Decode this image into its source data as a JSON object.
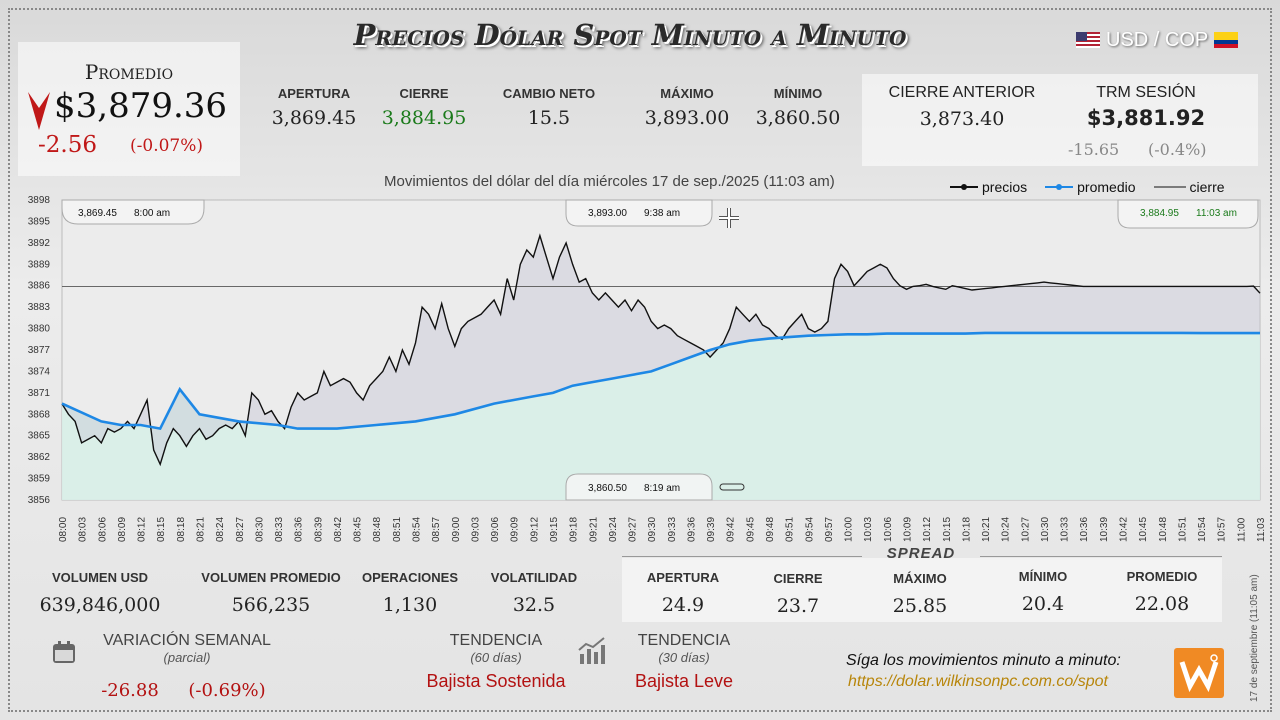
{
  "header": {
    "title": "Precios Dólar Spot Minuto a Minuto",
    "pair": "USD / COP"
  },
  "promedio": {
    "label": "Promedio",
    "value": "$3,879.36",
    "change": "-2.56",
    "change_pct": "(-0.07%)"
  },
  "top_stats": [
    {
      "label": "APERTURA",
      "value": "3,869.45"
    },
    {
      "label": "CIERRE",
      "value": "3,884.95"
    },
    {
      "label": "CAMBIO NETO",
      "value": "15.5"
    },
    {
      "label": "MÁXIMO",
      "value": "3,893.00"
    },
    {
      "label": "MÍNIMO",
      "value": "3,860.50"
    }
  ],
  "cierre_anterior": {
    "label": "CIERRE ANTERIOR",
    "value": "3,873.40"
  },
  "trm": {
    "label": "TRM SESIÓN",
    "value": "$3,881.92",
    "change": "-15.65",
    "change_pct": "(-0.4%)"
  },
  "chart_title": "Movimientos del dólar del día miércoles 17 de sep./2025 (11:03 am)",
  "legend": [
    "precios",
    "promedio",
    "cierre"
  ],
  "callouts": {
    "open": {
      "value": "3,869.45",
      "time": "8:00 am"
    },
    "max": {
      "value": "3,893.00",
      "time": "9:38 am"
    },
    "close": {
      "value": "3,884.95",
      "time": "11:03 am"
    },
    "min": {
      "value": "3,860.50",
      "time": "8:19 am"
    }
  },
  "bottom_stats": [
    {
      "label": "VOLUMEN USD",
      "value": "639,846,000"
    },
    {
      "label": "VOLUMEN PROMEDIO",
      "value": "566,235"
    },
    {
      "label": "OPERACIONES",
      "value": "1,130"
    },
    {
      "label": "VOLATILIDAD",
      "value": "32.5"
    }
  ],
  "spread": {
    "title": "SPREAD",
    "items": [
      {
        "label": "APERTURA",
        "value": "24.9"
      },
      {
        "label": "CIERRE",
        "value": "23.7"
      },
      {
        "label": "MÁXIMO",
        "value": "25.85"
      },
      {
        "label": "MÍNIMO",
        "value": "20.4"
      },
      {
        "label": "PROMEDIO",
        "value": "22.08"
      }
    ]
  },
  "variacion": {
    "label": "VARIACIÓN SEMANAL",
    "sub": "(parcial)",
    "value": "-26.88",
    "pct": "(-0.69%)"
  },
  "tendencia_60": {
    "label": "TENDENCIA",
    "sub": "(60 días)",
    "value": "Bajista Sostenida"
  },
  "tendencia_30": {
    "label": "TENDENCIA",
    "sub": "(30 días)",
    "value": "Bajista Leve"
  },
  "follow": {
    "text": "Síga los movimientos minuto a minuto:",
    "url": "https://dolar.wilkinsonpc.com.co/spot"
  },
  "timestamp": "17 de septiembre (11:05 am)",
  "colors": {
    "price": "#111111",
    "average": "#1e88e5",
    "fill": "#d8efe8",
    "negative": "#c01818",
    "positive": "#1a7a1a"
  },
  "chart_data": {
    "type": "line",
    "title": "Movimientos del dólar del día miércoles 17 de sep./2025 (11:03 am)",
    "ylim": [
      3856,
      3898
    ],
    "yticks": [
      3856,
      3859,
      3862,
      3865,
      3868,
      3871,
      3874,
      3877,
      3880,
      3883,
      3886,
      3889,
      3892,
      3895,
      3898
    ],
    "xticks": [
      "08:00",
      "08:03",
      "08:06",
      "08:09",
      "08:12",
      "08:15",
      "08:18",
      "08:21",
      "08:24",
      "08:27",
      "08:30",
      "08:33",
      "08:36",
      "08:39",
      "08:42",
      "08:45",
      "08:48",
      "08:51",
      "08:54",
      "08:57",
      "09:00",
      "09:03",
      "09:06",
      "09:09",
      "09:12",
      "09:15",
      "09:18",
      "09:21",
      "09:24",
      "09:27",
      "09:30",
      "09:33",
      "09:36",
      "09:39",
      "09:42",
      "09:45",
      "09:48",
      "09:51",
      "09:54",
      "09:57",
      "10:00",
      "10:03",
      "10:06",
      "10:09",
      "10:12",
      "10:15",
      "10:18",
      "10:21",
      "10:24",
      "10:27",
      "10:30",
      "10:33",
      "10:36",
      "10:39",
      "10:42",
      "10:45",
      "10:48",
      "10:51",
      "10:54",
      "10:57",
      "11:00",
      "11:03"
    ],
    "close_ref": 3885.9,
    "series": [
      {
        "name": "precios",
        "x_minutes": [
          0,
          1,
          2,
          3,
          4,
          5,
          6,
          7,
          8,
          9,
          10,
          11,
          12,
          13,
          14,
          15,
          16,
          17,
          18,
          19,
          20,
          21,
          22,
          23,
          24,
          25,
          26,
          27,
          28,
          29,
          30,
          31,
          32,
          33,
          34,
          35,
          36,
          37,
          38,
          39,
          40,
          41,
          42,
          43,
          44,
          45,
          46,
          47,
          48,
          49,
          50,
          51,
          52,
          53,
          54,
          55,
          56,
          57,
          58,
          59,
          60,
          61,
          62,
          63,
          64,
          65,
          66,
          67,
          68,
          69,
          70,
          71,
          72,
          73,
          74,
          75,
          76,
          77,
          78,
          79,
          80,
          81,
          82,
          83,
          84,
          85,
          86,
          87,
          88,
          89,
          90,
          91,
          92,
          93,
          94,
          95,
          96,
          97,
          98,
          99,
          100,
          101,
          102,
          103,
          104,
          105,
          106,
          107,
          108,
          109,
          110,
          111,
          112,
          113,
          114,
          115,
          116,
          117,
          118,
          119,
          120,
          121,
          122,
          123,
          124,
          125,
          126,
          127,
          128,
          129,
          130,
          131,
          132,
          133,
          134,
          135,
          136,
          137,
          138,
          139,
          140,
          141,
          142,
          143,
          144,
          145,
          146,
          147,
          148,
          149,
          150,
          151,
          152,
          153,
          154,
          155,
          156,
          157,
          158,
          159,
          160,
          161,
          162,
          163,
          164,
          165,
          166,
          167,
          168,
          169,
          170,
          171,
          172,
          173,
          174,
          175,
          176,
          177,
          178,
          179,
          180,
          181,
          182,
          183
        ],
        "values": [
          3869.45,
          3868,
          3867,
          3864,
          3864.5,
          3865,
          3864,
          3866,
          3865.5,
          3866,
          3867,
          3866,
          3868,
          3870,
          3863,
          3861,
          3864,
          3866,
          3865,
          3863.5,
          3865,
          3866,
          3864.5,
          3865,
          3866,
          3866.5,
          3866,
          3867,
          3865,
          3871,
          3870,
          3868,
          3868.5,
          3867,
          3866,
          3869,
          3871,
          3870,
          3870.5,
          3871,
          3874,
          3872,
          3872.5,
          3873,
          3872.5,
          3871,
          3870,
          3872,
          3873,
          3874,
          3876,
          3874,
          3877,
          3875,
          3878,
          3883,
          3882,
          3880,
          3883.5,
          3880,
          3877.5,
          3880,
          3881,
          3881.5,
          3882,
          3883,
          3884,
          3882,
          3887,
          3884,
          3889,
          3891,
          3890,
          3893,
          3890,
          3887,
          3890,
          3892,
          3889,
          3886.5,
          3887,
          3885,
          3884,
          3885,
          3884,
          3883,
          3884,
          3882.5,
          3884,
          3883,
          3881,
          3880,
          3880.5,
          3880,
          3879,
          3878.5,
          3878,
          3877.5,
          3877,
          3876,
          3877,
          3878,
          3880,
          3883,
          3882,
          3881,
          3882,
          3880.5,
          3880,
          3879,
          3878.5,
          3880,
          3881,
          3882,
          3880,
          3879.5,
          3880,
          3881,
          3887,
          3889,
          3888,
          3886,
          3887,
          3888,
          3888.5,
          3889,
          3888.5,
          3887,
          3886,
          3885.5,
          3885.9,
          3886,
          3886.2,
          3885.9,
          3885.7,
          3885.5,
          3886,
          3885.8,
          3885.6,
          3885.4,
          3885.5,
          3885.6,
          3885.7,
          3885.8,
          3885.9,
          3886,
          3886.1,
          3886.2,
          3886.3,
          3886.4,
          3886.5,
          3886.4,
          3886.3,
          3886.2,
          3886.1,
          3886,
          3885.9,
          3885.9,
          3885.9,
          3885.9,
          3885.9,
          3885.9,
          3885.9,
          3885.9,
          3885.9,
          3885.9,
          3885.9,
          3885.9,
          3885.9,
          3885.9,
          3885.9,
          3885.9,
          3885.9,
          3885.9,
          3885.9,
          3885.9,
          3885.9,
          3885.9,
          3885.9,
          3885.9,
          3885.9,
          3885.9,
          3885.95,
          3884.95
        ]
      },
      {
        "name": "promedio",
        "x_minutes": [
          0,
          6,
          9,
          12,
          15,
          18,
          21,
          27,
          33,
          36,
          42,
          48,
          54,
          60,
          66,
          69,
          72,
          75,
          78,
          81,
          84,
          87,
          90,
          93,
          96,
          99,
          102,
          105,
          108,
          111,
          114,
          117,
          120,
          123,
          126,
          129,
          132,
          135,
          138,
          141,
          144,
          147,
          150,
          153,
          156,
          159,
          162,
          165,
          168,
          171,
          174,
          177,
          180,
          183
        ],
        "values": [
          3869.5,
          3867,
          3866.5,
          3866.5,
          3866,
          3871.5,
          3868,
          3867,
          3866.5,
          3866,
          3866,
          3866.5,
          3867,
          3868,
          3869.5,
          3870,
          3870.5,
          3871,
          3872,
          3872.5,
          3873,
          3873.5,
          3874,
          3875,
          3876,
          3877,
          3877.8,
          3878.3,
          3878.6,
          3878.8,
          3879,
          3879.1,
          3879.2,
          3879.2,
          3879.3,
          3879.3,
          3879.3,
          3879.3,
          3879.3,
          3879.4,
          3879.4,
          3879.4,
          3879.4,
          3879.4,
          3879.4,
          3879.4,
          3879.4,
          3879.4,
          3879.4,
          3879.4,
          3879.36,
          3879.36,
          3879.36,
          3879.36
        ]
      }
    ],
    "xlabel": "",
    "ylabel": "",
    "grid": false,
    "legend_position": "top-right"
  }
}
